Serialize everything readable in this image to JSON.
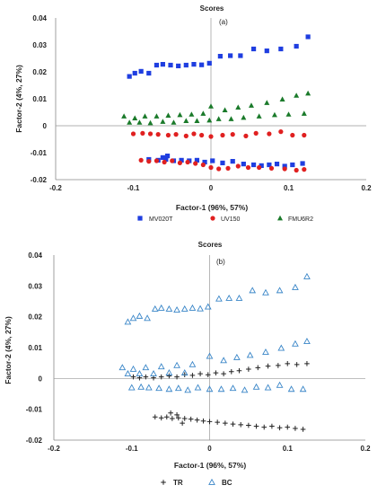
{
  "chart_data": [
    {
      "type": "scatter",
      "title": "Scores",
      "panel_label": "(a)",
      "xlabel": "Factor-1 (96%, 57%)",
      "ylabel": "Factor-2 (4%, 27%)",
      "xlim": [
        -0.2,
        0.2
      ],
      "ylim": [
        -0.02,
        0.04
      ],
      "xticks": [
        "-0.2",
        "-0.1",
        "0",
        "0.1",
        "0.2"
      ],
      "yticks": [
        "-0.02",
        "-0.01",
        "0",
        "0.01",
        "0.02",
        "0.03",
        "0.04"
      ],
      "grid": false,
      "legend_position": "bottom",
      "series": [
        {
          "name": "MV020T",
          "color": "#1f3ee0",
          "marker": "square",
          "points": [
            [
              -0.105,
              0.0183
            ],
            [
              -0.098,
              0.0195
            ],
            [
              -0.09,
              0.0202
            ],
            [
              -0.08,
              0.0195
            ],
            [
              -0.07,
              0.0225
            ],
            [
              -0.062,
              0.0228
            ],
            [
              -0.052,
              0.0225
            ],
            [
              -0.042,
              0.0222
            ],
            [
              -0.032,
              0.0225
            ],
            [
              -0.022,
              0.0228
            ],
            [
              -0.012,
              0.0226
            ],
            [
              -0.002,
              0.0232
            ],
            [
              0.012,
              0.0258
            ],
            [
              0.025,
              0.026
            ],
            [
              0.038,
              0.026
            ],
            [
              0.055,
              0.0285
            ],
            [
              0.072,
              0.0278
            ],
            [
              0.09,
              0.0285
            ],
            [
              0.11,
              0.0295
            ],
            [
              0.125,
              0.033
            ],
            [
              -0.08,
              -0.0125
            ],
            [
              -0.068,
              -0.0128
            ],
            [
              -0.058,
              -0.0125
            ],
            [
              -0.048,
              -0.013
            ],
            [
              -0.038,
              -0.0128
            ],
            [
              -0.028,
              -0.013
            ],
            [
              -0.018,
              -0.0128
            ],
            [
              -0.008,
              -0.0135
            ],
            [
              0.002,
              -0.013
            ],
            [
              0.015,
              -0.0138
            ],
            [
              0.028,
              -0.0132
            ],
            [
              0.042,
              -0.0142
            ],
            [
              0.055,
              -0.0145
            ],
            [
              0.065,
              -0.0148
            ],
            [
              0.075,
              -0.0145
            ],
            [
              0.085,
              -0.0142
            ],
            [
              0.095,
              -0.015
            ],
            [
              0.105,
              -0.0145
            ],
            [
              0.118,
              -0.014
            ],
            [
              -0.062,
              -0.0118
            ],
            [
              -0.056,
              -0.0112
            ]
          ]
        },
        {
          "name": "UV150",
          "color": "#e02020",
          "marker": "circle",
          "points": [
            [
              -0.1,
              -0.003
            ],
            [
              -0.088,
              -0.0028
            ],
            [
              -0.078,
              -0.003
            ],
            [
              -0.068,
              -0.0032
            ],
            [
              -0.055,
              -0.0035
            ],
            [
              -0.045,
              -0.0032
            ],
            [
              -0.032,
              -0.0038
            ],
            [
              -0.022,
              -0.003
            ],
            [
              -0.012,
              -0.0035
            ],
            [
              0.0,
              -0.004
            ],
            [
              0.015,
              -0.0035
            ],
            [
              0.028,
              -0.0032
            ],
            [
              0.045,
              -0.0038
            ],
            [
              0.058,
              -0.0028
            ],
            [
              0.075,
              -0.003
            ],
            [
              0.09,
              -0.0022
            ],
            [
              0.105,
              -0.0035
            ],
            [
              0.12,
              -0.0035
            ],
            [
              -0.09,
              -0.0128
            ],
            [
              -0.08,
              -0.0132
            ],
            [
              -0.07,
              -0.013
            ],
            [
              -0.06,
              -0.0135
            ],
            [
              -0.05,
              -0.013
            ],
            [
              -0.04,
              -0.0138
            ],
            [
              -0.03,
              -0.0135
            ],
            [
              -0.02,
              -0.014
            ],
            [
              -0.01,
              -0.0145
            ],
            [
              0.0,
              -0.0155
            ],
            [
              0.01,
              -0.016
            ],
            [
              0.022,
              -0.0158
            ],
            [
              0.035,
              -0.015
            ],
            [
              0.048,
              -0.0155
            ],
            [
              0.062,
              -0.0155
            ],
            [
              0.078,
              -0.0158
            ],
            [
              0.095,
              -0.016
            ],
            [
              0.11,
              -0.0165
            ],
            [
              0.12,
              -0.0162
            ]
          ]
        },
        {
          "name": "FMU6R2",
          "color": "#1a7a2a",
          "marker": "triangle",
          "points": [
            [
              -0.112,
              0.0035
            ],
            [
              -0.105,
              0.0012
            ],
            [
              -0.098,
              0.0028
            ],
            [
              -0.092,
              0.0012
            ],
            [
              -0.085,
              0.0035
            ],
            [
              -0.078,
              0.001
            ],
            [
              -0.07,
              0.0035
            ],
            [
              -0.062,
              0.0015
            ],
            [
              -0.055,
              0.0038
            ],
            [
              -0.048,
              0.0012
            ],
            [
              -0.04,
              0.004
            ],
            [
              -0.032,
              0.0018
            ],
            [
              -0.025,
              0.0042
            ],
            [
              -0.018,
              0.0018
            ],
            [
              -0.01,
              0.0045
            ],
            [
              -0.002,
              0.002
            ],
            [
              0.0,
              0.0072
            ],
            [
              0.01,
              0.0025
            ],
            [
              0.018,
              0.0058
            ],
            [
              0.026,
              0.0025
            ],
            [
              0.035,
              0.0068
            ],
            [
              0.042,
              0.003
            ],
            [
              0.052,
              0.0075
            ],
            [
              0.062,
              0.0035
            ],
            [
              0.072,
              0.0085
            ],
            [
              0.082,
              0.004
            ],
            [
              0.092,
              0.0098
            ],
            [
              0.1,
              0.0042
            ],
            [
              0.11,
              0.0112
            ],
            [
              0.12,
              0.0045
            ],
            [
              0.125,
              0.012
            ]
          ]
        }
      ]
    },
    {
      "type": "scatter",
      "title": "Scores",
      "panel_label": "(b)",
      "xlabel": "Factor-1 (96%, 57%)",
      "ylabel": "Factor-2 (4%, 27%)",
      "xlim": [
        -0.2,
        0.2
      ],
      "ylim": [
        -0.02,
        0.04
      ],
      "xticks": [
        "-0.2",
        "-0.1",
        "0",
        "0.1",
        "0.2"
      ],
      "yticks": [
        "-0.02",
        "-0.01",
        "0",
        "0.01",
        "0.02",
        "0.03",
        "0.04"
      ],
      "grid": false,
      "legend_position": "bottom",
      "series": [
        {
          "name": "TR",
          "color": "#222222",
          "marker": "plus",
          "points": [
            [
              -0.098,
              0.0005
            ],
            [
              -0.09,
              0.0002
            ],
            [
              -0.082,
              0.0005
            ],
            [
              -0.072,
              0.0002
            ],
            [
              -0.062,
              0.0005
            ],
            [
              -0.052,
              0.0008
            ],
            [
              -0.042,
              0.0005
            ],
            [
              -0.032,
              0.0012
            ],
            [
              -0.022,
              0.001
            ],
            [
              -0.012,
              0.0015
            ],
            [
              -0.002,
              0.0012
            ],
            [
              0.008,
              0.0018
            ],
            [
              0.018,
              0.0015
            ],
            [
              0.028,
              0.0022
            ],
            [
              0.038,
              0.0025
            ],
            [
              0.05,
              0.003
            ],
            [
              0.062,
              0.0035
            ],
            [
              0.075,
              0.004
            ],
            [
              0.088,
              0.0042
            ],
            [
              0.1,
              0.0048
            ],
            [
              0.112,
              0.0045
            ],
            [
              0.125,
              0.0048
            ],
            [
              -0.07,
              -0.0125
            ],
            [
              -0.062,
              -0.0128
            ],
            [
              -0.055,
              -0.0125
            ],
            [
              -0.048,
              -0.013
            ],
            [
              -0.04,
              -0.0128
            ],
            [
              -0.032,
              -0.013
            ],
            [
              -0.024,
              -0.0132
            ],
            [
              -0.016,
              -0.0135
            ],
            [
              -0.008,
              -0.0138
            ],
            [
              0.0,
              -0.014
            ],
            [
              0.01,
              -0.0142
            ],
            [
              0.02,
              -0.0145
            ],
            [
              0.03,
              -0.0148
            ],
            [
              0.04,
              -0.015
            ],
            [
              0.05,
              -0.0152
            ],
            [
              0.06,
              -0.0155
            ],
            [
              0.07,
              -0.0158
            ],
            [
              0.08,
              -0.0155
            ],
            [
              0.09,
              -0.016
            ],
            [
              0.1,
              -0.0158
            ],
            [
              0.11,
              -0.0162
            ],
            [
              0.12,
              -0.0165
            ],
            [
              -0.05,
              -0.0112
            ],
            [
              -0.042,
              -0.0118
            ],
            [
              -0.035,
              -0.0145
            ]
          ]
        },
        {
          "name": "BC",
          "color": "#3a86c8",
          "marker": "triangle-open",
          "points": [
            [
              -0.105,
              0.0183
            ],
            [
              -0.098,
              0.0195
            ],
            [
              -0.09,
              0.0202
            ],
            [
              -0.08,
              0.0195
            ],
            [
              -0.07,
              0.0225
            ],
            [
              -0.062,
              0.0228
            ],
            [
              -0.052,
              0.0225
            ],
            [
              -0.042,
              0.0222
            ],
            [
              -0.032,
              0.0225
            ],
            [
              -0.022,
              0.0228
            ],
            [
              -0.012,
              0.0226
            ],
            [
              -0.002,
              0.0232
            ],
            [
              0.012,
              0.0258
            ],
            [
              0.025,
              0.026
            ],
            [
              0.038,
              0.026
            ],
            [
              0.055,
              0.0285
            ],
            [
              0.072,
              0.0278
            ],
            [
              0.09,
              0.0285
            ],
            [
              0.11,
              0.0295
            ],
            [
              0.125,
              0.033
            ],
            [
              -0.112,
              0.0035
            ],
            [
              -0.105,
              0.0015
            ],
            [
              -0.098,
              0.003
            ],
            [
              -0.09,
              0.0015
            ],
            [
              -0.082,
              0.0035
            ],
            [
              -0.072,
              0.0015
            ],
            [
              -0.062,
              0.0038
            ],
            [
              -0.052,
              0.0018
            ],
            [
              -0.042,
              0.0042
            ],
            [
              -0.032,
              0.0018
            ],
            [
              -0.022,
              0.0045
            ],
            [
              0.0,
              0.0072
            ],
            [
              0.018,
              0.0058
            ],
            [
              0.035,
              0.0068
            ],
            [
              0.052,
              0.0075
            ],
            [
              0.072,
              0.0085
            ],
            [
              0.092,
              0.0098
            ],
            [
              0.11,
              0.0112
            ],
            [
              0.125,
              0.012
            ],
            [
              -0.1,
              -0.003
            ],
            [
              -0.088,
              -0.0028
            ],
            [
              -0.078,
              -0.003
            ],
            [
              -0.065,
              -0.0032
            ],
            [
              -0.052,
              -0.0035
            ],
            [
              -0.04,
              -0.0032
            ],
            [
              -0.028,
              -0.0038
            ],
            [
              -0.015,
              -0.003
            ],
            [
              0.0,
              -0.0035
            ],
            [
              0.015,
              -0.0035
            ],
            [
              0.03,
              -0.0032
            ],
            [
              0.045,
              -0.0038
            ],
            [
              0.06,
              -0.0028
            ],
            [
              0.075,
              -0.003
            ],
            [
              0.09,
              -0.0022
            ],
            [
              0.105,
              -0.0035
            ],
            [
              0.12,
              -0.0035
            ]
          ]
        }
      ]
    }
  ]
}
